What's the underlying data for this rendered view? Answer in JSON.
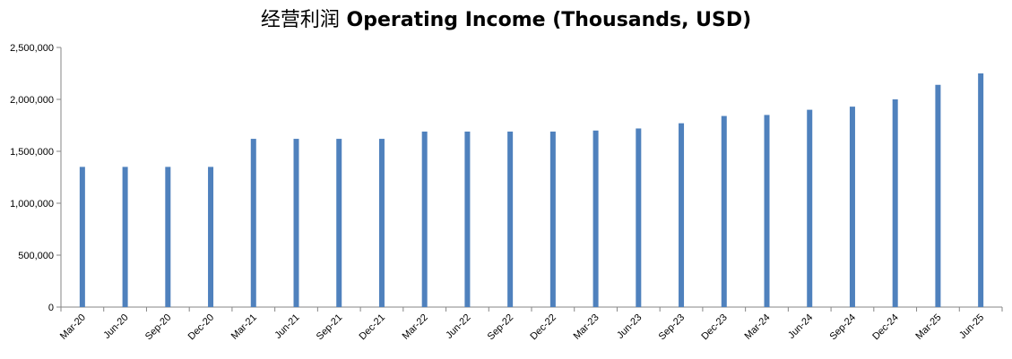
{
  "chart_data": {
    "type": "bar",
    "title_cn": "经营利润",
    "title_en": "Operating Income (Thousands, USD)",
    "xlabel": "",
    "ylabel": "",
    "ylim": [
      0,
      2500000
    ],
    "yticks": [
      0,
      500000,
      1000000,
      1500000,
      2000000,
      2500000
    ],
    "ytick_labels": [
      "0",
      "500,000",
      "1,000,000",
      "1,500,000",
      "2,000,000",
      "2,500,000"
    ],
    "grid": false,
    "bar_color": "#4F81BD",
    "categories": [
      "Mar-20",
      "Jun-20",
      "Sep-20",
      "Dec-20",
      "Mar-21",
      "Jun-21",
      "Sep-21",
      "Dec-21",
      "Mar-22",
      "Jun-22",
      "Sep-22",
      "Dec-22",
      "Mar-23",
      "Jun-23",
      "Sep-23",
      "Dec-23",
      "Mar-24",
      "Jun-24",
      "Sep-24",
      "Dec-24",
      "Mar-25",
      "Jun-25"
    ],
    "values": [
      1350000,
      1350000,
      1350000,
      1350000,
      1620000,
      1620000,
      1620000,
      1620000,
      1690000,
      1690000,
      1690000,
      1690000,
      1700000,
      1720000,
      1770000,
      1840000,
      1850000,
      1900000,
      1930000,
      2000000,
      2140000,
      2250000
    ]
  }
}
